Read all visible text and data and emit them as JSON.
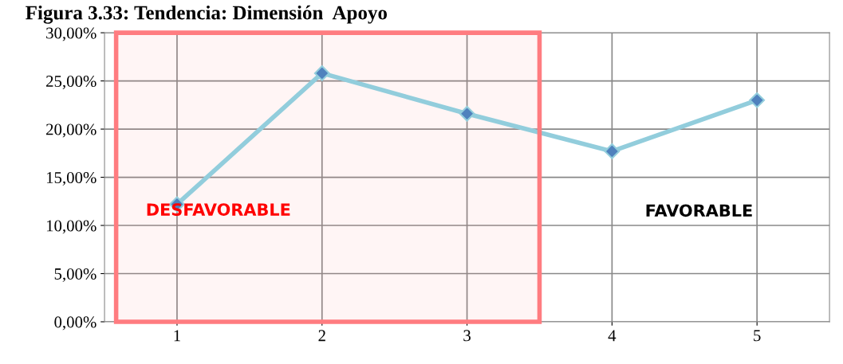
{
  "chart_data": {
    "type": "line",
    "title": "Figura 3.33: Tendencia: Dimensión  Apoyo",
    "x": [
      1,
      2,
      3,
      4,
      5
    ],
    "xlim": [
      0.5,
      5.5
    ],
    "xticks": [
      1,
      2,
      3,
      4,
      5
    ],
    "series": [
      {
        "color": "#92cddc",
        "values": [
          12.2,
          25.8,
          21.6,
          17.7,
          23.0
        ]
      }
    ],
    "ylim": [
      0,
      30
    ],
    "yticks": [
      {
        "value": 0,
        "label": "0,00%"
      },
      {
        "value": 5,
        "label": "5,00%"
      },
      {
        "value": 10,
        "label": "10,00%"
      },
      {
        "value": 15,
        "label": "15,00%"
      },
      {
        "value": 20,
        "label": "20,00%"
      },
      {
        "value": 25,
        "label": "25,00%"
      },
      {
        "value": 30,
        "label": "30,00%"
      }
    ],
    "grid": true,
    "marker": "diamond",
    "line_style": "solid",
    "bands": [
      {
        "axis": "x",
        "from": 0.58,
        "to": 3.5,
        "label": "DESFAVORABLE",
        "color": "#ff7c80"
      }
    ],
    "annotations": [
      "FAVORABLE"
    ]
  }
}
